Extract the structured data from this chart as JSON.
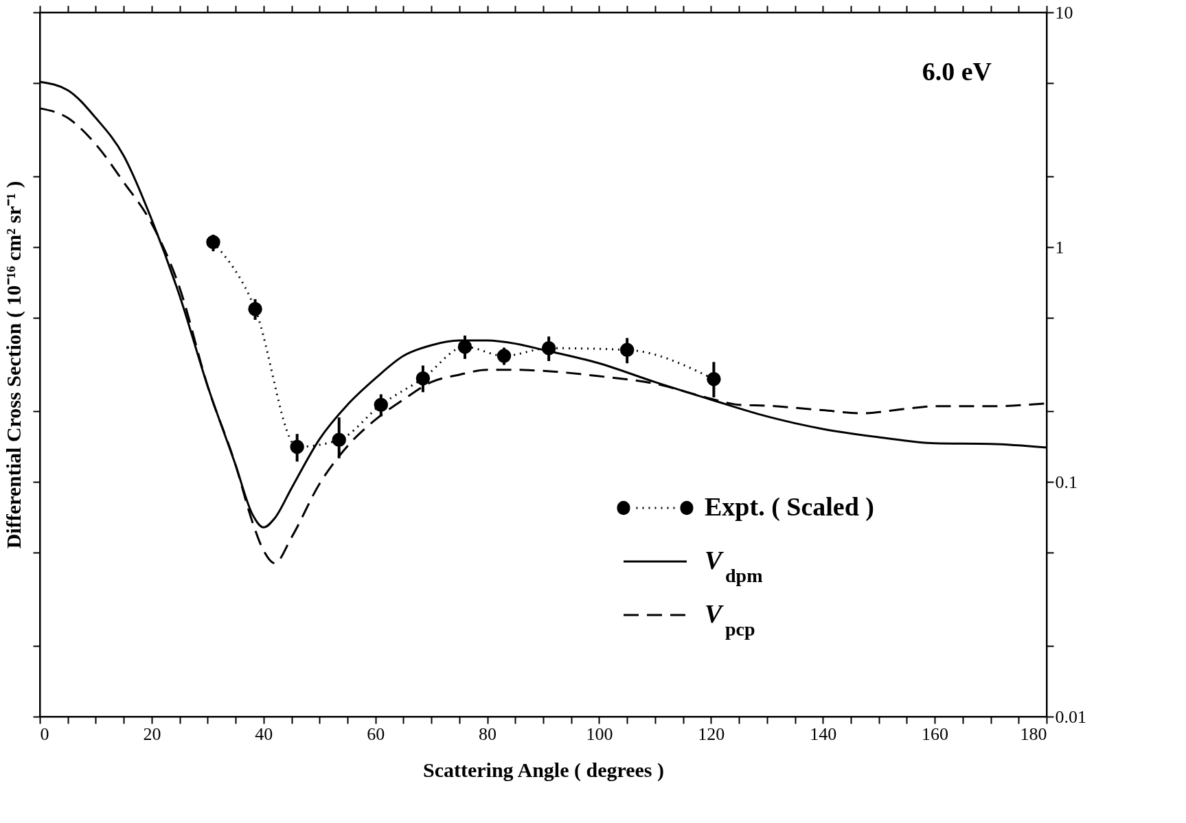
{
  "chart_data": {
    "type": "line",
    "ylabel": "Differential Cross Section ( 10⁻¹⁶ cm² sr⁻¹ )",
    "xlabel": "Scattering Angle ( degrees )",
    "annotations": [
      "6.0 eV"
    ],
    "xlim": [
      0,
      180
    ],
    "ylim": [
      0.01,
      10
    ],
    "log": "y",
    "grid": false,
    "legend": "bottom right",
    "xticks": [
      0,
      {
        "value": 5,
        "label": null
      },
      {
        "value": 10,
        "label": null
      },
      {
        "value": 15,
        "label": null
      },
      20,
      {
        "value": 25,
        "label": null
      },
      {
        "value": 30,
        "label": null
      },
      {
        "value": 35,
        "label": null
      },
      40,
      {
        "value": 45,
        "label": null
      },
      {
        "value": 50,
        "label": null
      },
      {
        "value": 55,
        "label": null
      },
      60,
      {
        "value": 65,
        "label": null
      },
      {
        "value": 70,
        "label": null
      },
      {
        "value": 75,
        "label": null
      },
      80,
      {
        "value": 85,
        "label": null
      },
      {
        "value": 90,
        "label": null
      },
      {
        "value": 95,
        "label": null
      },
      100,
      {
        "value": 105,
        "label": null
      },
      {
        "value": 110,
        "label": null
      },
      {
        "value": 115,
        "label": null
      },
      120,
      {
        "value": 125,
        "label": null
      },
      {
        "value": 130,
        "label": null
      },
      {
        "value": 135,
        "label": null
      },
      140,
      {
        "value": 145,
        "label": null
      },
      {
        "value": 150,
        "label": null
      },
      {
        "value": 155,
        "label": null
      },
      160,
      {
        "value": 165,
        "label": null
      },
      {
        "value": 170,
        "label": null
      },
      {
        "value": 175,
        "label": null
      },
      180
    ],
    "yticks": [
      0.01,
      {
        "value": 0.02,
        "label": null
      },
      {
        "value": 0.05,
        "label": null
      },
      0.1,
      {
        "value": 0.2,
        "label": null
      },
      {
        "value": 0.5,
        "label": null
      },
      1,
      {
        "value": 2,
        "label": null
      },
      {
        "value": 5,
        "label": null
      },
      10
    ],
    "series": [
      {
        "name": "Expt. ( Scaled )",
        "marker": "circle",
        "line_style": "dotted",
        "color": "#000000",
        "x": [
          31,
          38.5,
          46,
          53.5,
          61,
          68.5,
          76,
          83,
          91,
          105,
          120.5
        ],
        "values": [
          1.05,
          0.545,
          0.141,
          0.151,
          0.213,
          0.276,
          0.376,
          0.344,
          0.371,
          0.365,
          0.274
        ],
        "errors": [
          [
            0.96,
            1.13
          ],
          [
            0.49,
            0.6
          ],
          [
            0.122,
            0.16
          ],
          [
            0.126,
            0.188
          ],
          [
            0.19,
            0.236
          ],
          [
            0.241,
            0.313
          ],
          [
            0.334,
            0.42
          ],
          [
            0.315,
            0.373
          ],
          [
            0.327,
            0.416
          ],
          [
            0.32,
            0.41
          ],
          [
            0.229,
            0.324
          ]
        ]
      },
      {
        "name": "V$_{dpm}$",
        "marker": "none",
        "line_style": "solid",
        "color": "#000000",
        "x": [
          0,
          5,
          10,
          15,
          20,
          25,
          30,
          35,
          38,
          40,
          42,
          45,
          50,
          55,
          60,
          65,
          70,
          75,
          80,
          85,
          90,
          100,
          110,
          120,
          130,
          140,
          150,
          160,
          170,
          180
        ],
        "values": [
          5.06,
          4.66,
          3.55,
          2.45,
          1.31,
          0.62,
          0.256,
          0.118,
          0.0728,
          0.064,
          0.07,
          0.094,
          0.152,
          0.213,
          0.276,
          0.344,
          0.382,
          0.4,
          0.4,
          0.388,
          0.365,
          0.32,
          0.266,
          0.224,
          0.19,
          0.168,
          0.155,
          0.146,
          0.145,
          0.14
        ]
      },
      {
        "name": "V$_{pcp}$",
        "marker": "none",
        "line_style": "dashed",
        "color": "#000000",
        "x": [
          0,
          5,
          10,
          15,
          20,
          25,
          30,
          35,
          38,
          40,
          42,
          45,
          50,
          55,
          60,
          65,
          70,
          75,
          80,
          85,
          90,
          100,
          110,
          120,
          125,
          130,
          140,
          147,
          155,
          160,
          170,
          180
        ],
        "values": [
          3.9,
          3.55,
          2.74,
          1.89,
          1.26,
          0.67,
          0.256,
          0.118,
          0.0676,
          0.051,
          0.045,
          0.058,
          0.098,
          0.142,
          0.184,
          0.224,
          0.266,
          0.286,
          0.3,
          0.3,
          0.297,
          0.282,
          0.262,
          0.226,
          0.213,
          0.211,
          0.202,
          0.196,
          0.205,
          0.21,
          0.21,
          0.216
        ]
      }
    ]
  }
}
